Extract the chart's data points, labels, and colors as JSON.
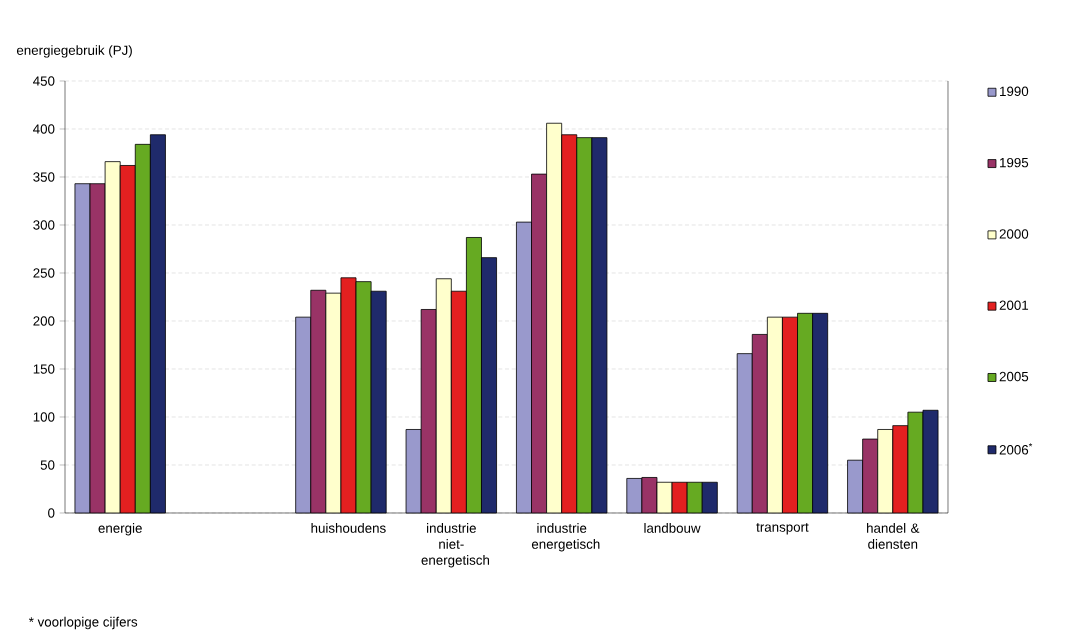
{
  "chart_data": {
    "type": "bar",
    "ylabel": "energiegebruik (PJ)",
    "categories": [
      "energie",
      null,
      "huishoudens",
      "industrie niet-energetisch",
      "industrie energetisch",
      "landbouw",
      "transport",
      "handel & diensten"
    ],
    "series": [
      {
        "name": "1990",
        "color": "#9999cc",
        "values": [
          343,
          null,
          204,
          87,
          303,
          36,
          166,
          55
        ]
      },
      {
        "name": "1995",
        "color": "#993366",
        "values": [
          343,
          null,
          232,
          212,
          353,
          37,
          186,
          77
        ]
      },
      {
        "name": "2000",
        "color": "#ffffcc",
        "values": [
          366,
          null,
          229,
          244,
          406,
          32,
          204,
          87
        ]
      },
      {
        "name": "2001",
        "color": "#e32020",
        "values": [
          362,
          null,
          245,
          231,
          394,
          32,
          204,
          91
        ]
      },
      {
        "name": "2005",
        "color": "#66aa22",
        "values": [
          384,
          null,
          241,
          287,
          391,
          32,
          208,
          105
        ]
      },
      {
        "name": "2006$^{*}$",
        "color": "#1f2a6b",
        "values": [
          394,
          null,
          231,
          266,
          391,
          32,
          208,
          107
        ]
      }
    ],
    "ylim": [
      0,
      450
    ],
    "yticks": [
      0,
      50,
      100,
      150,
      200,
      250,
      300,
      350,
      400,
      450
    ],
    "grid": "y",
    "legend": "right",
    "annotations": [
      "* voorlopige cijfers"
    ]
  }
}
